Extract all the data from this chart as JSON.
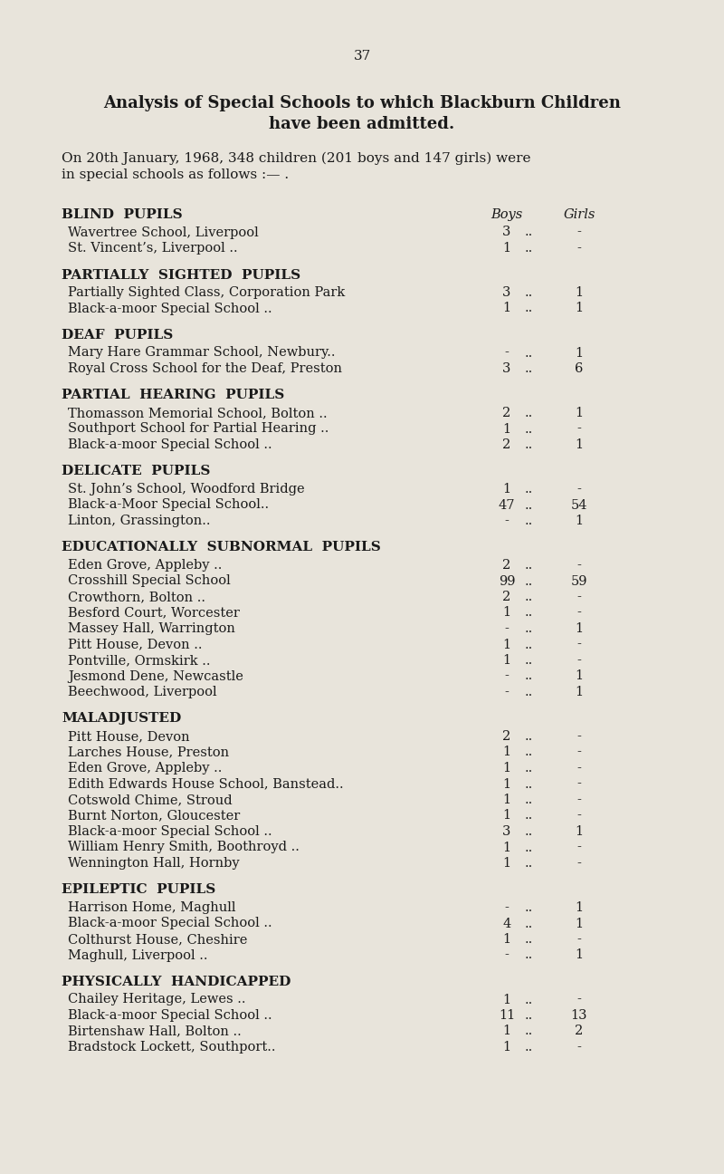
{
  "page_number": "37",
  "title_line1": "Analysis of Special Schools to which Blackburn Children",
  "title_line2": "have been admitted.",
  "intro": "On 20th January, 1968, 348 children (201 boys and 147 girls) were\nin special schools as follows :— .",
  "bg_color": "#e8e4db",
  "sections": [
    {
      "heading": "BLIND  PUPILS",
      "col_headers": true,
      "rows": [
        {
          "name": "Wavertree School, Liverpool",
          "dots": ".. .. .. ..",
          "boys": "3",
          "girls": "-"
        },
        {
          "name": "St. Vincent’s, Liverpool ..",
          "dots": ".. .. .. ..",
          "boys": "1",
          "girls": "-"
        }
      ]
    },
    {
      "heading": "PARTIALLY  SIGHTED  PUPILS",
      "col_headers": false,
      "rows": [
        {
          "name": "Partially Sighted Class, Corporation Park",
          "dots": ".. ..",
          "boys": "3",
          "girls": "1"
        },
        {
          "name": "Black-a-moor Special School ..",
          "dots": ".. .. .. ..",
          "boys": "1",
          "girls": "1"
        }
      ]
    },
    {
      "heading": "DEAF  PUPILS",
      "col_headers": false,
      "rows": [
        {
          "name": "Mary Hare Grammar School, Newbury..",
          "dots": ".. ..",
          "boys": "-",
          "girls": "1"
        },
        {
          "name": "Royal Cross School for the Deaf, Preston",
          "dots": ".. ..",
          "boys": "3",
          "girls": "6"
        }
      ]
    },
    {
      "heading": "PARTIAL  HEARING  PUPILS",
      "col_headers": false,
      "rows": [
        {
          "name": "Thomasson Memorial School, Bolton ..",
          "dots": ".. ..",
          "boys": "2",
          "girls": "1"
        },
        {
          "name": "Southport School for Partial Hearing ..",
          "dots": ".. ..",
          "boys": "1",
          "girls": "-"
        },
        {
          "name": "Black-a-moor Special School ..",
          "dots": ".. .. .. ..",
          "boys": "2",
          "girls": "1"
        }
      ]
    },
    {
      "heading": "DELICATE  PUPILS",
      "col_headers": false,
      "rows": [
        {
          "name": "St. John’s School, Woodford Bridge",
          "dots": ".. .. ..",
          "boys": "1",
          "girls": "-"
        },
        {
          "name": "Black-a-Moor Special School..",
          "dots": ".. .. .. ..",
          "boys": "47",
          "girls": "54"
        },
        {
          "name": "Linton, Grassington..",
          "dots": ".. .. .. .. ..",
          "boys": "-",
          "girls": "1"
        }
      ]
    },
    {
      "heading": "EDUCATIONALLY  SUBNORMAL  PUPILS",
      "col_headers": false,
      "rows": [
        {
          "name": "Eden Grove, Appleby ..",
          "dots": ".. .. .. ..",
          "boys": "2",
          "girls": "-"
        },
        {
          "name": "Crosshill Special School",
          "dots": ".. .. .. .. ..",
          "boys": "99",
          "girls": "59"
        },
        {
          "name": "Crowthorn, Bolton ..",
          "dots": ".. .. .. .. ..",
          "boys": "2",
          "girls": "-"
        },
        {
          "name": "Besford Court, Worcester",
          "dots": ".. .. .. ..",
          "boys": "1",
          "girls": "-"
        },
        {
          "name": "Massey Hall, Warrington",
          "dots": ".. .. .. ..",
          "boys": "-",
          "girls": "1"
        },
        {
          "name": "Pitt House, Devon ..",
          "dots": ".. .. .. .. ..",
          "boys": "1",
          "girls": "-"
        },
        {
          "name": "Pontville, Ormskirk ..",
          "dots": ".. .. .. .. ..",
          "boys": "1",
          "girls": "-"
        },
        {
          "name": "Jesmond Dene, Newcastle",
          "dots": ".. .. .. ..",
          "boys": "-",
          "girls": "1"
        },
        {
          "name": "Beechwood, Liverpool",
          "dots": ".. .. .. .. ..",
          "boys": "-",
          "girls": "1"
        }
      ]
    },
    {
      "heading": "MALADJUSTED",
      "col_headers": false,
      "rows": [
        {
          "name": "Pitt House, Devon",
          "dots": ".. .. .. .. .. ..",
          "boys": "2",
          "girls": "-"
        },
        {
          "name": "Larches House, Preston",
          "dots": ".. .. .. .. ..",
          "boys": "1",
          "girls": "-"
        },
        {
          "name": "Eden Grove, Appleby ..",
          "dots": ".. .. .. ..",
          "boys": "1",
          "girls": "-"
        },
        {
          "name": "Edith Edwards House School, Banstead..",
          "dots": ".. ..",
          "boys": "1",
          "girls": "-"
        },
        {
          "name": "Cotswold Chime, Stroud",
          "dots": ".. .. .. .. ..",
          "boys": "1",
          "girls": "-"
        },
        {
          "name": "Burnt Norton, Gloucester",
          "dots": ".. .. .. ..",
          "boys": "1",
          "girls": "-"
        },
        {
          "name": "Black-a-moor Special School ..",
          "dots": ".. .. .. ..",
          "boys": "3",
          "girls": "1"
        },
        {
          "name": "William Henry Smith, Boothroyd ..",
          "dots": ".. ..",
          "boys": "1",
          "girls": "-"
        },
        {
          "name": "Wennington Hall, Hornby",
          "dots": ".. .. .. ..",
          "boys": "1",
          "girls": "-"
        }
      ]
    },
    {
      "heading": "EPILEPTIC  PUPILS",
      "col_headers": false,
      "rows": [
        {
          "name": "Harrison Home, Maghull",
          "dots": ".. .. .. .. ..",
          "boys": "-",
          "girls": "1"
        },
        {
          "name": "Black-a-moor Special School ..",
          "dots": ".. .. .. ..",
          "boys": "4",
          "girls": "1"
        },
        {
          "name": "Colthurst House, Cheshire",
          "dots": ".. .. .. ..",
          "boys": "1",
          "girls": "-"
        },
        {
          "name": "Maghull, Liverpool ..",
          "dots": ".. .. .. .. ..",
          "boys": "-",
          "girls": "1"
        }
      ]
    },
    {
      "heading": "PHYSICALLY  HANDICAPPED",
      "col_headers": false,
      "rows": [
        {
          "name": "Chailey Heritage, Lewes ..",
          "dots": ".. .. .. .. ..",
          "boys": "1",
          "girls": "-"
        },
        {
          "name": "Black-a-moor Special School ..",
          "dots": ".. .. .. ..",
          "boys": "11",
          "girls": "13"
        },
        {
          "name": "Birtenshaw Hall, Bolton ..",
          "dots": ".. .. .. ..",
          "boys": "1",
          "girls": "2"
        },
        {
          "name": "Bradstock Lockett, Southport..",
          "dots": ".. .. .. ..",
          "boys": "1",
          "girls": "-"
        }
      ]
    }
  ]
}
